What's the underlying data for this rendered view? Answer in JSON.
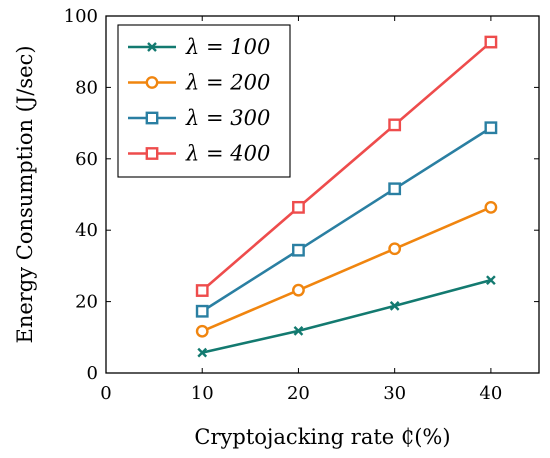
{
  "chart_data": {
    "type": "line",
    "title": "",
    "xlabel": "Cryptojacking rate ₵(%)",
    "ylabel": "Energy Consumption (J/sec)",
    "xlim": [
      0,
      45
    ],
    "ylim": [
      0,
      100
    ],
    "xticks": [
      0,
      10,
      20,
      30,
      40
    ],
    "yticks": [
      0,
      20,
      40,
      60,
      80,
      100
    ],
    "grid": false,
    "legend_position": "top-left",
    "x": [
      10,
      20,
      30,
      40
    ],
    "series": [
      {
        "name": "λ = 100",
        "color": "#137a70",
        "marker": "x",
        "values": [
          5.7,
          11.8,
          18.8,
          26.0
        ]
      },
      {
        "name": "λ = 200",
        "color": "#f0850f",
        "marker": "circle",
        "values": [
          11.7,
          23.2,
          34.8,
          46.4
        ]
      },
      {
        "name": "λ = 300",
        "color": "#2a7fa2",
        "marker": "square",
        "values": [
          17.3,
          34.4,
          51.6,
          68.7
        ]
      },
      {
        "name": "λ = 400",
        "color": "#ee4c4c",
        "marker": "square",
        "values": [
          23.1,
          46.4,
          69.5,
          92.7
        ]
      }
    ]
  }
}
